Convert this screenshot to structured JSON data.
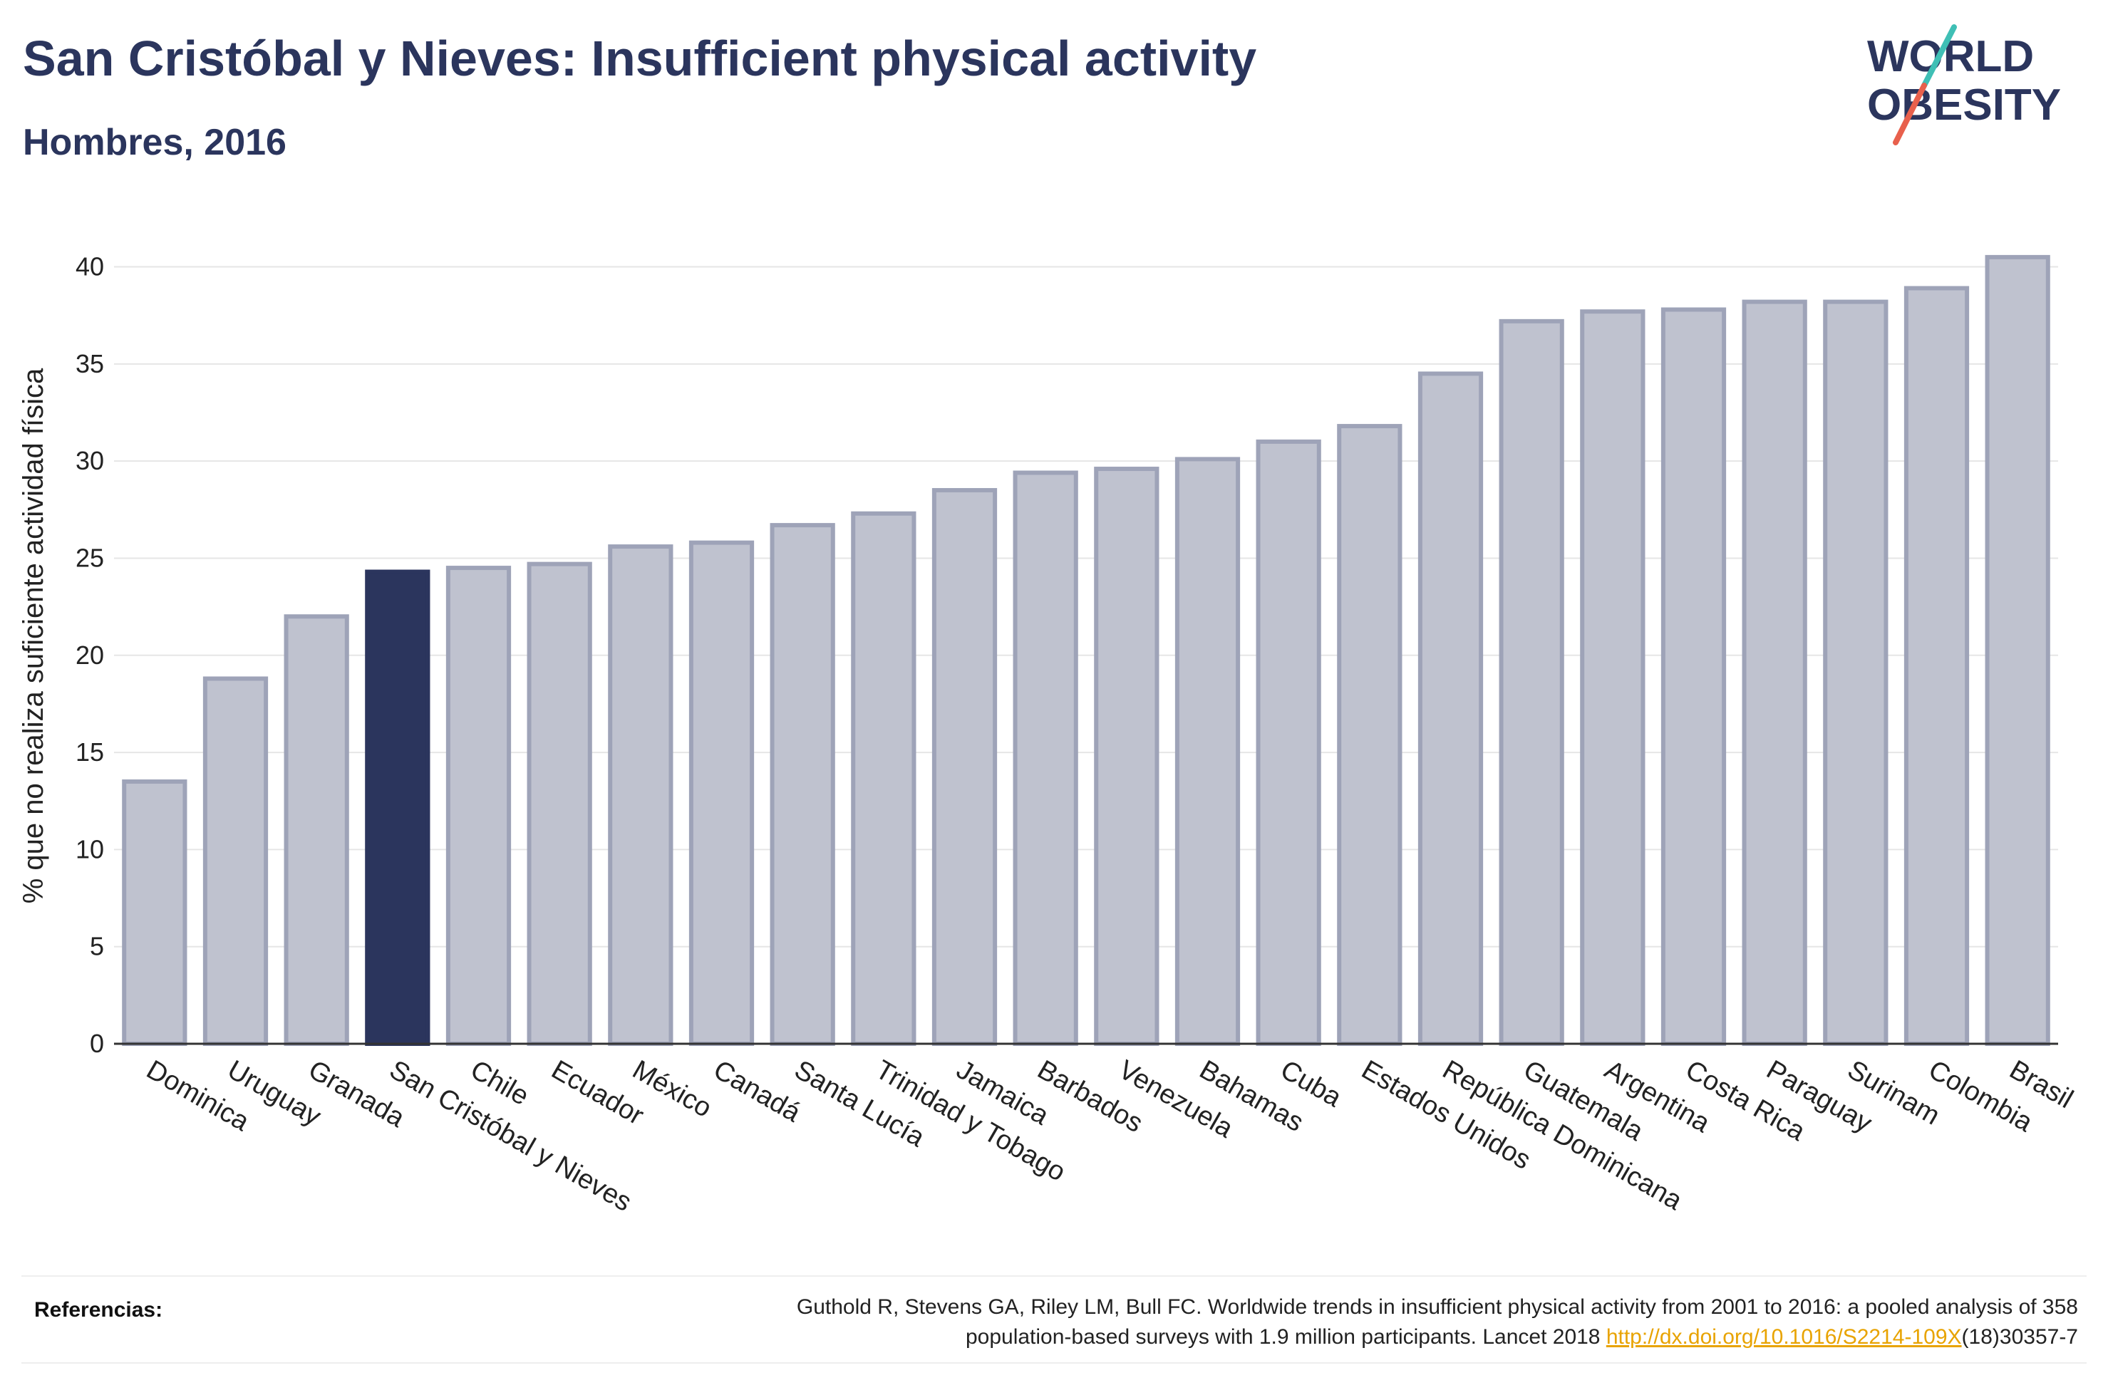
{
  "header": {
    "title": "San Cristóbal y Nieves: Insufficient physical activity",
    "subtitle": "Hombres, 2016"
  },
  "logo": {
    "line1": "WORLD",
    "line2": "OBESITY",
    "colors": {
      "text": "#2b355d",
      "slash_top": "#3fbfb5",
      "slash_bottom": "#e8604c"
    }
  },
  "chart_data": {
    "type": "bar",
    "ylabel": "% que no realiza suficiente actividad física",
    "ylim": [
      0,
      42
    ],
    "yticks": [
      0,
      5,
      10,
      15,
      20,
      25,
      30,
      35,
      40
    ],
    "grid": true,
    "highlight": "San Cristóbal y Nieves",
    "colors": {
      "bar": "#bfc2cf",
      "bar_border": "#9ea3b8",
      "highlight": "#2b355d"
    },
    "categories": [
      "Dominica",
      "Uruguay",
      "Granada",
      "San Cristóbal y Nieves",
      "Chile",
      "Ecuador",
      "México",
      "Canadá",
      "Santa Lucía",
      "Trinidad y Tobago",
      "Jamaica",
      "Barbados",
      "Venezuela",
      "Bahamas",
      "Cuba",
      "Estados Unidos",
      "República Dominicana",
      "Guatemala",
      "Argentina",
      "Costa Rica",
      "Paraguay",
      "Surinam",
      "Colombia",
      "Brasil"
    ],
    "values": [
      13.5,
      18.8,
      22.0,
      24.3,
      24.5,
      24.7,
      25.6,
      25.8,
      26.7,
      27.3,
      28.5,
      29.4,
      29.6,
      30.1,
      31.0,
      31.8,
      34.5,
      37.2,
      37.7,
      37.8,
      38.2,
      38.2,
      38.9,
      40.5
    ]
  },
  "footer": {
    "label": "Referencias:",
    "citation_line1": "Guthold R, Stevens GA, Riley LM, Bull FC. Worldwide trends in insufficient physical activity from 2001 to 2016: a pooled analysis of 358",
    "citation_line2_pre": "population-based surveys with 1.9 million participants. Lancet 2018 ",
    "citation_link": "http://dx.doi.org/10.1016/S2214-109X",
    "citation_line2_post": "(18)30357-7"
  }
}
